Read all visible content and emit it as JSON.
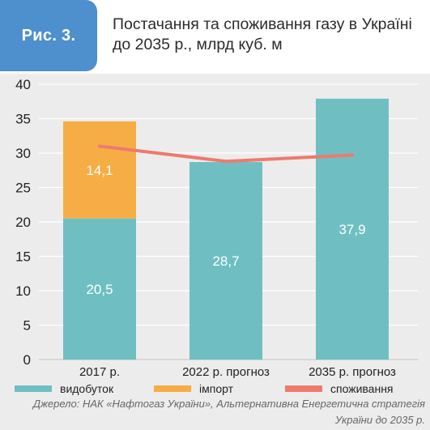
{
  "figure_label": "Рис. 3.",
  "chart_data": {
    "type": "bar",
    "title": "Постачання та споживання газу в Україні до 2035 р., млрд куб. м",
    "categories": [
      "2017 р.",
      "2022 р. прогноз",
      "2035 р. прогноз"
    ],
    "series": [
      {
        "name": "видобуток",
        "kind": "bar",
        "stack": "supply",
        "color": "#6fbfc2",
        "values": [
          20.5,
          28.7,
          37.9
        ],
        "labels": [
          "20,5",
          "28,7",
          "37,9"
        ]
      },
      {
        "name": "імпорт",
        "kind": "bar",
        "stack": "supply",
        "color": "#f7ad45",
        "values": [
          14.1,
          0,
          0
        ],
        "labels": [
          "14,1",
          "",
          ""
        ]
      },
      {
        "name": "споживання",
        "kind": "line",
        "color": "#ee7a6e",
        "values": [
          31.0,
          28.8,
          29.7
        ]
      }
    ],
    "ylim": [
      0,
      40
    ],
    "yticks": [
      0,
      5,
      10,
      15,
      20,
      25,
      30,
      35,
      40
    ],
    "grid": true,
    "legend_position": "bottom",
    "source": "Джерело: НАК «Нафтогаз України», Альтернативна Енергетична стратегія України до 2035 р."
  }
}
